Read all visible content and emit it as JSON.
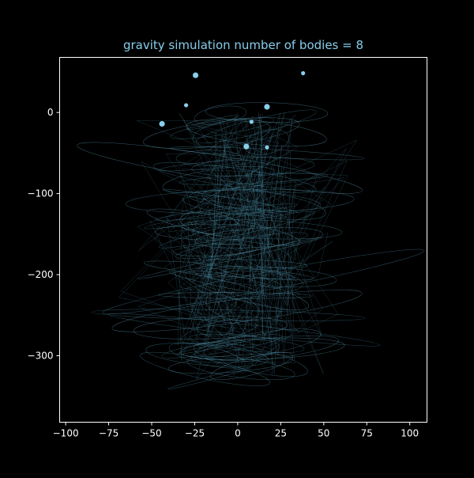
{
  "chart_data": {
    "type": "scatter",
    "title": "gravity simulation number of bodies = 8",
    "xlabel": "",
    "ylabel": "",
    "xlim": [
      -103.5,
      110
    ],
    "ylim": [
      -382,
      68
    ],
    "x_ticks": [
      -100,
      -75,
      -50,
      -25,
      0,
      25,
      50,
      75,
      100
    ],
    "x_tick_labels": [
      "−100",
      "−75",
      "−50",
      "−25",
      "0",
      "25",
      "50",
      "75",
      "100"
    ],
    "y_ticks": [
      0,
      -100,
      -200,
      -300
    ],
    "y_tick_labels": [
      "0",
      "−100",
      "−200",
      "−300"
    ],
    "grid": false,
    "legend": "none",
    "colors": {
      "background": "#000000",
      "axes_frame": "#ffffff",
      "tick_text": "#ffffff",
      "title": "#87ceeb",
      "bodies": "#87ceeb",
      "trails": "#4a8fa8"
    },
    "bodies": [
      {
        "x": -24.5,
        "y": 46.0,
        "size": "large"
      },
      {
        "x": 38.0,
        "y": 48.5,
        "size": "small"
      },
      {
        "x": -30.0,
        "y": 9.0,
        "size": "small"
      },
      {
        "x": 17.0,
        "y": 7.0,
        "size": "large"
      },
      {
        "x": -44.0,
        "y": -14.0,
        "size": "large"
      },
      {
        "x": 8.0,
        "y": -11.5,
        "size": "small"
      },
      {
        "x": 5.0,
        "y": -42.0,
        "size": "large"
      },
      {
        "x": 17.0,
        "y": -43.0,
        "size": "small"
      }
    ]
  }
}
